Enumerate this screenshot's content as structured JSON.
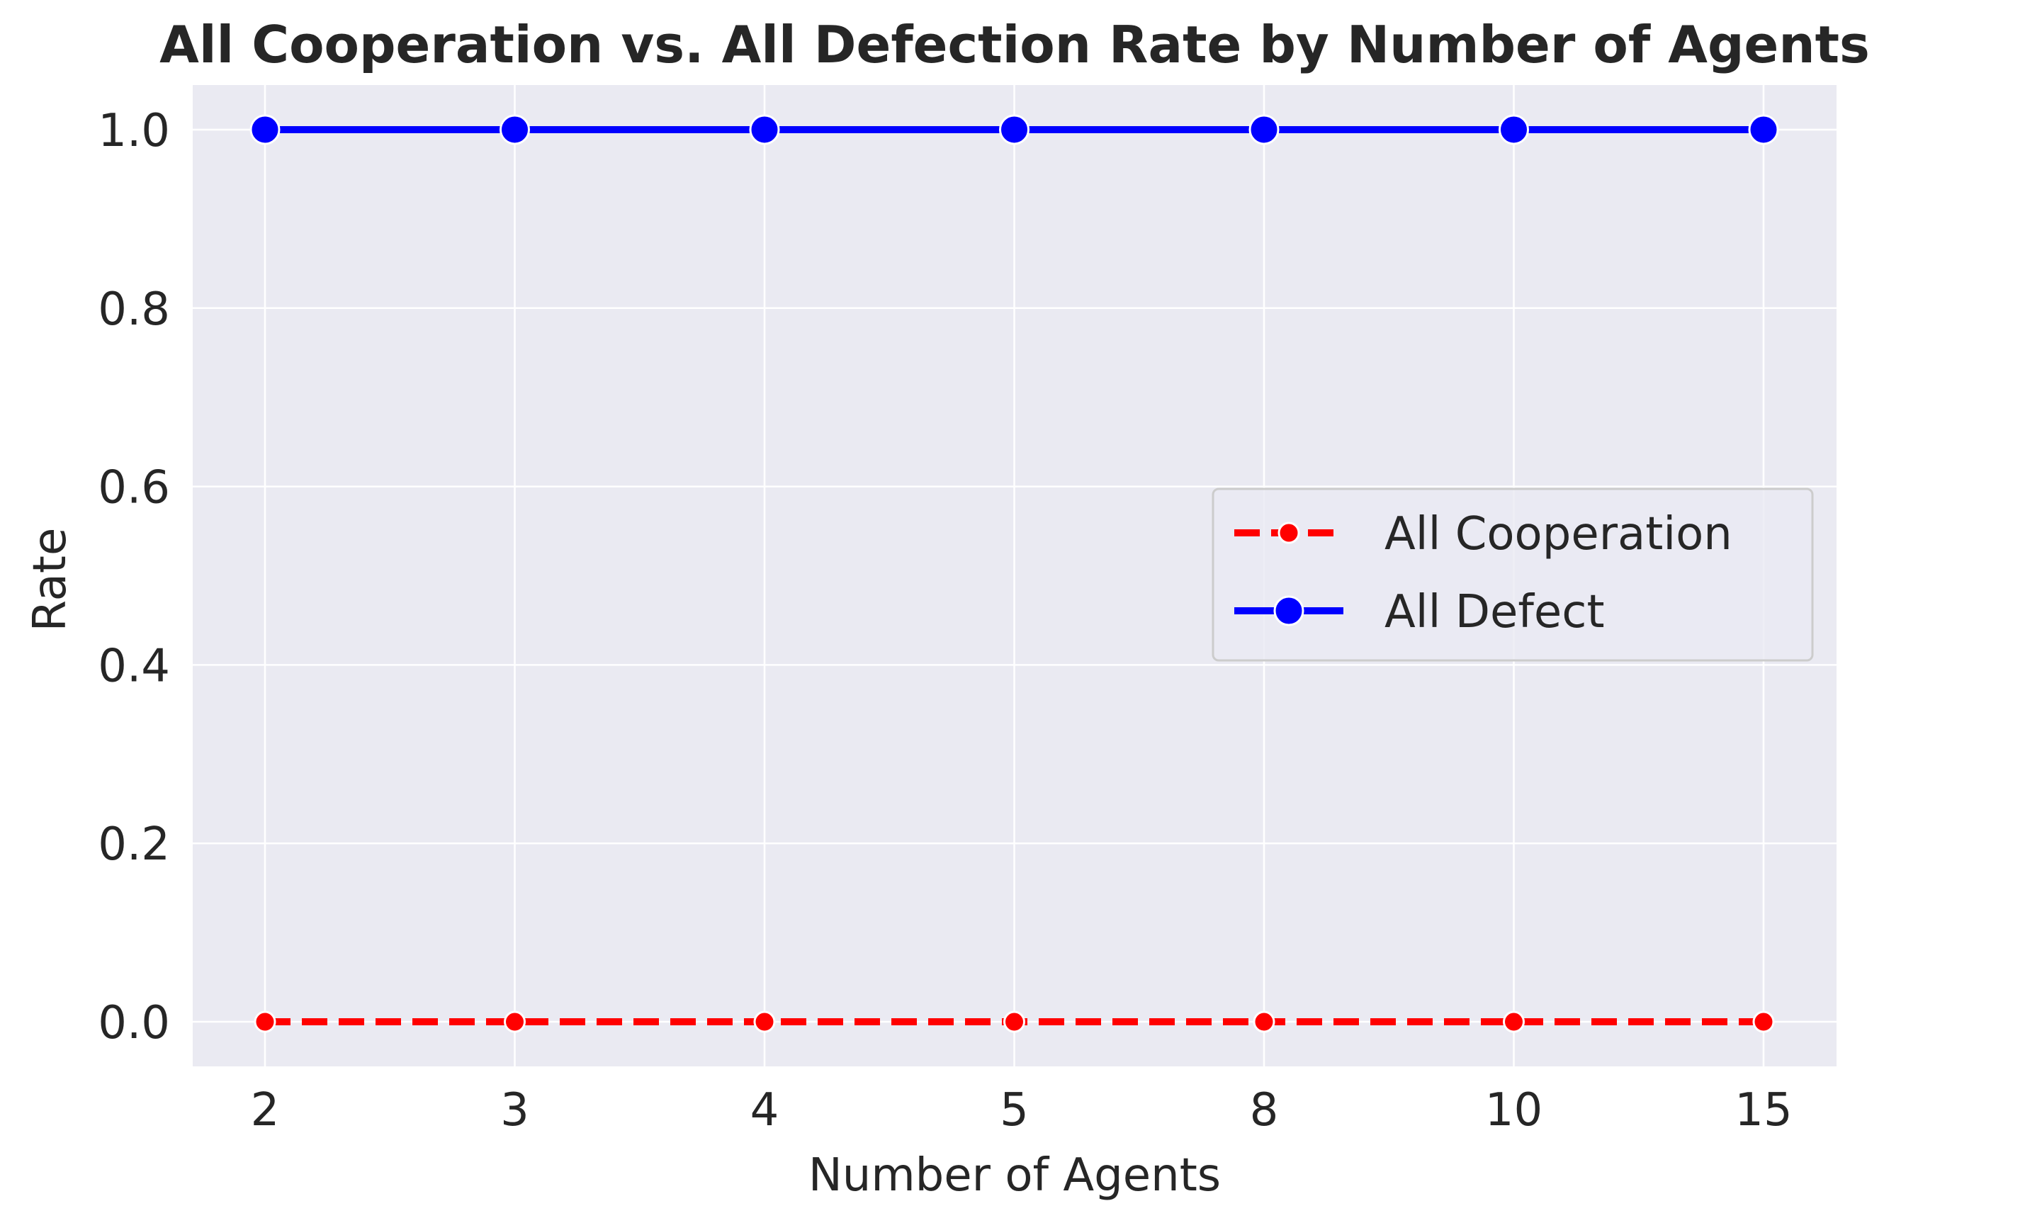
{
  "chart_data": {
    "type": "line",
    "title": "All Cooperation vs. All Defection Rate by Number of Agents",
    "xlabel": "Number of Agents",
    "ylabel": "Rate",
    "categories": [
      "2",
      "3",
      "4",
      "5",
      "8",
      "10",
      "15"
    ],
    "ylim": [
      -0.05,
      1.05
    ],
    "yticks": [
      "0.0",
      "0.2",
      "0.4",
      "0.6",
      "0.8",
      "1.0"
    ],
    "grid": true,
    "legend_position": "center-right",
    "series": [
      {
        "name": "All Cooperation",
        "values": [
          0,
          0,
          0,
          0,
          0,
          0,
          0
        ],
        "color": "#ff0000",
        "style": "dashed",
        "marker": "circle-small"
      },
      {
        "name": "All Defect",
        "values": [
          1,
          1,
          1,
          1,
          1,
          1,
          1
        ],
        "color": "#0000ff",
        "style": "solid",
        "marker": "circle-large"
      }
    ]
  }
}
